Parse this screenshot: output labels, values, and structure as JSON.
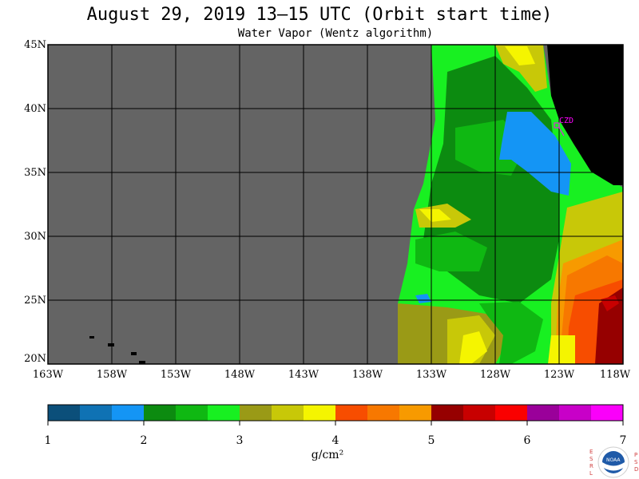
{
  "title": "August 29, 2019  13–15 UTC  (Orbit start time)",
  "subtitle": "Water Vapor (Wentz algorithm)",
  "lat_labels": [
    "45N",
    "40N",
    "35N",
    "30N",
    "25N",
    "20N"
  ],
  "lon_labels": [
    "163W",
    "158W",
    "153W",
    "148W",
    "143W",
    "138W",
    "133W",
    "128W",
    "123W",
    "118W"
  ],
  "station_label": "CZD",
  "colorbar": {
    "tick_labels": [
      "1",
      "2",
      "3",
      "4",
      "5",
      "6",
      "7"
    ],
    "units": "g/cm²",
    "colors": [
      "#0b4f7a",
      "#0f72b4",
      "#1495f5",
      "#0c8b10",
      "#0fb812",
      "#18f021",
      "#9a9a16",
      "#c8c808",
      "#f5f500",
      "#f74d00",
      "#f77800",
      "#f79a00",
      "#960000",
      "#c80000",
      "#fa0000",
      "#9a009a",
      "#c800c8",
      "#fa00fa"
    ]
  },
  "colors": {
    "no_data": "#646464",
    "land": "#000000",
    "grid": "#000000",
    "station": "#ff00ff"
  },
  "logo": {
    "left_letters": [
      "E",
      "S",
      "R",
      "L"
    ],
    "right_letters": [
      "P",
      "S",
      "D"
    ],
    "center_text": "NOAA"
  }
}
